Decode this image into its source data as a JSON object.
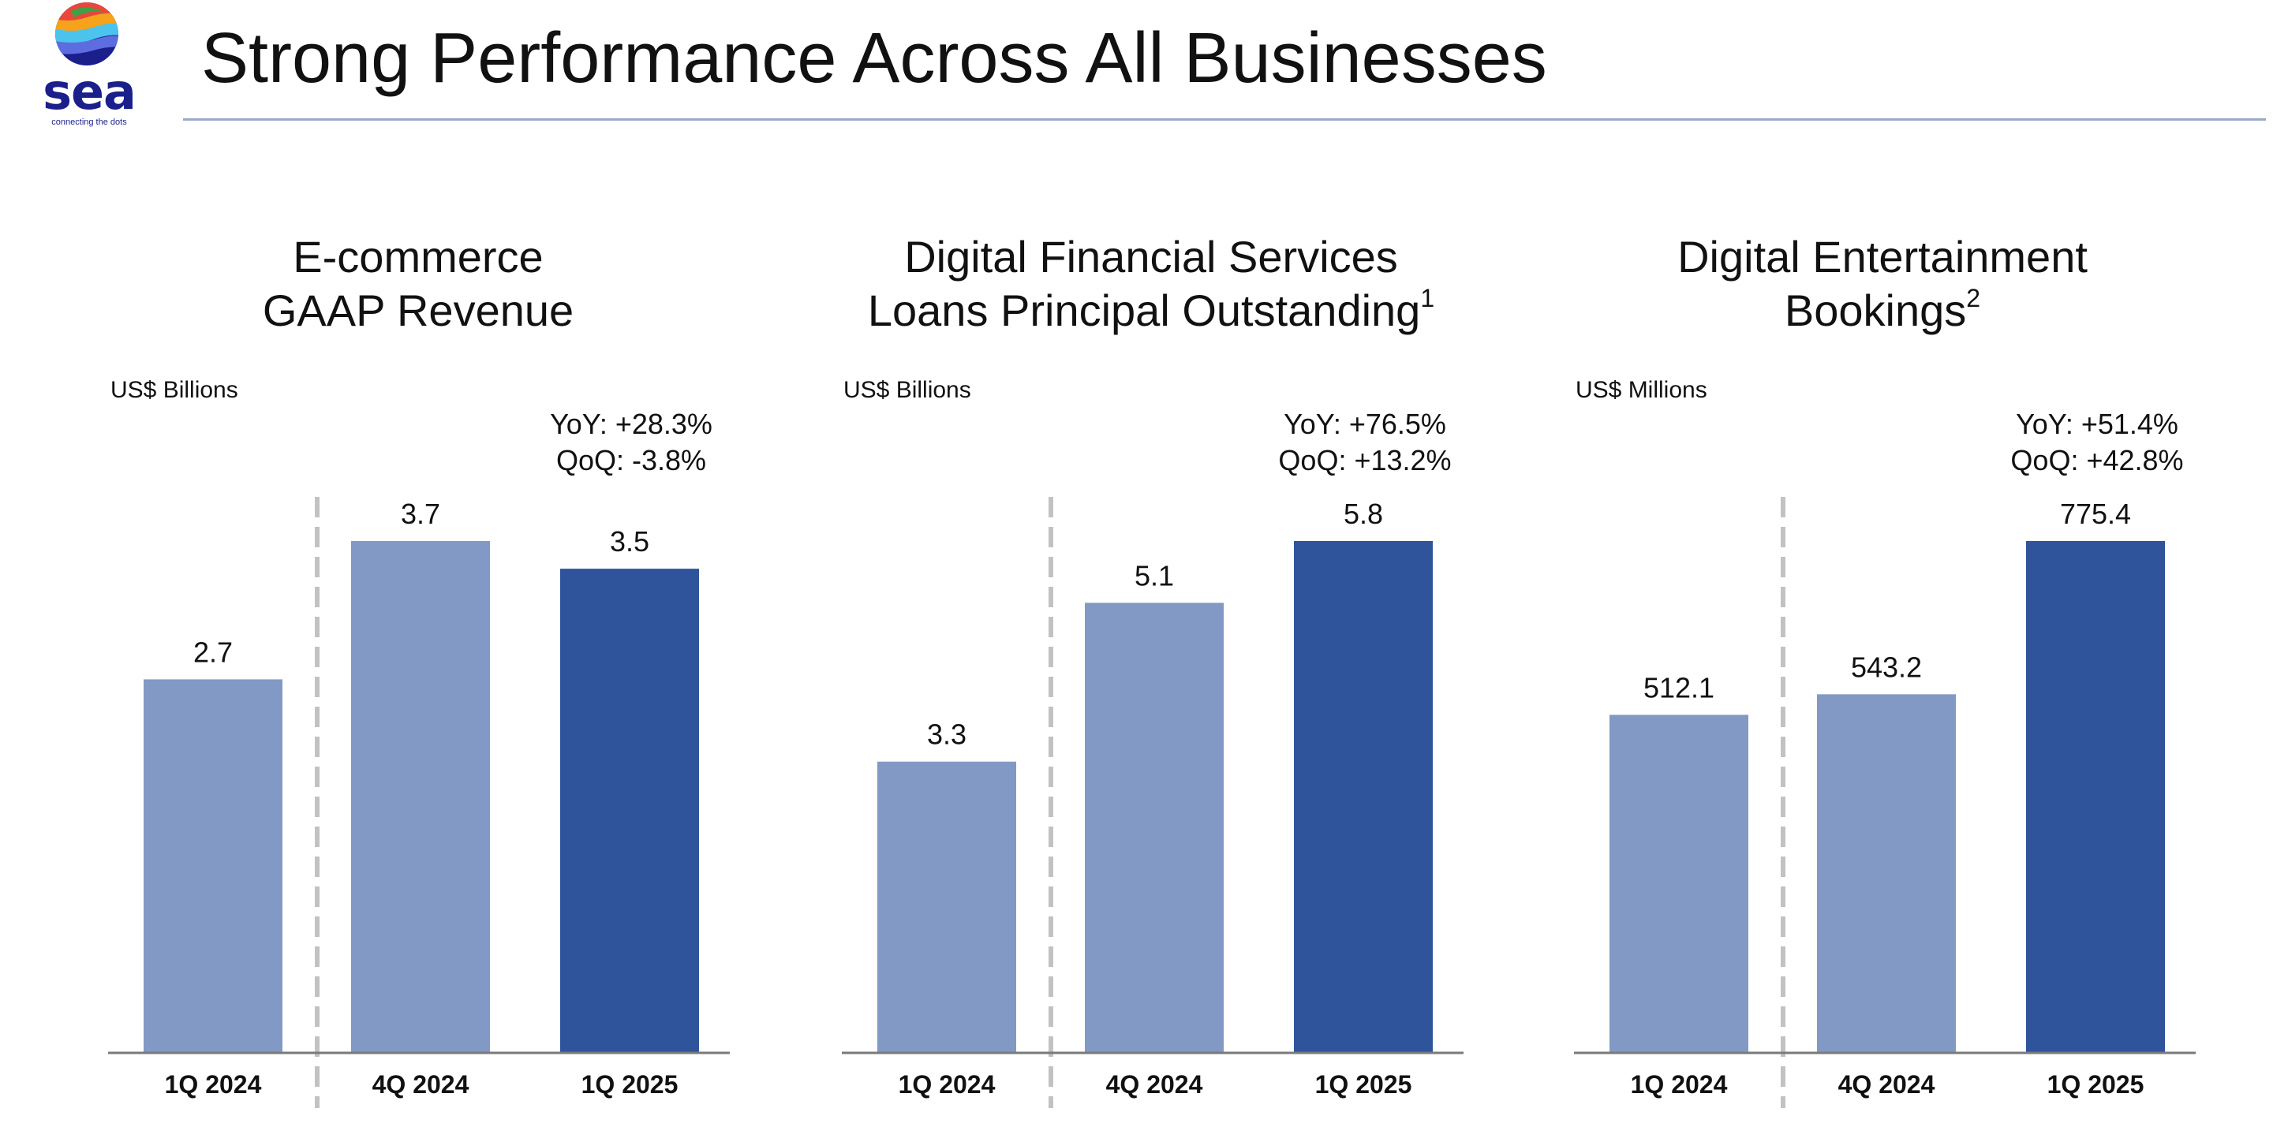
{
  "header": {
    "title": "Strong Performance Across All Businesses",
    "logo": {
      "word": "sea",
      "tagline": "connecting the dots"
    }
  },
  "colors": {
    "bar_prior": "#8199c4",
    "bar_current": "#2f549c",
    "divider": "#c2c2c2",
    "axis": "#7a7a7a",
    "rule": "#9aaac8"
  },
  "chart_data": [
    {
      "type": "bar",
      "title_line1": "E-commerce",
      "title_line2": "GAAP Revenue",
      "title_sup": "",
      "unit": "US$ Billions",
      "yoy": "YoY: +28.3%",
      "qoq": "QoQ: -3.8%",
      "categories": [
        "1Q 2024",
        "4Q 2024",
        "1Q 2025"
      ],
      "values": [
        2.7,
        3.7,
        3.5
      ],
      "value_labels": [
        "2.7",
        "3.7",
        "3.5"
      ],
      "ylim": [
        0,
        3.7
      ]
    },
    {
      "type": "bar",
      "title_line1": "Digital Financial Services",
      "title_line2": "Loans Principal Outstanding",
      "title_sup": "1",
      "unit": "US$ Billions",
      "yoy": "YoY: +76.5%",
      "qoq": "QoQ: +13.2%",
      "categories": [
        "1Q 2024",
        "4Q 2024",
        "1Q 2025"
      ],
      "values": [
        3.3,
        5.1,
        5.8
      ],
      "value_labels": [
        "3.3",
        "5.1",
        "5.8"
      ],
      "ylim": [
        0,
        5.8
      ]
    },
    {
      "type": "bar",
      "title_line1": "Digital Entertainment",
      "title_line2": "Bookings",
      "title_sup": "2",
      "unit": "US$ Millions",
      "yoy": "YoY: +51.4%",
      "qoq": "QoQ: +42.8%",
      "categories": [
        "1Q 2024",
        "4Q 2024",
        "1Q 2025"
      ],
      "values": [
        512.1,
        543.2,
        775.4
      ],
      "value_labels": [
        "512.1",
        "543.2",
        "775.4"
      ],
      "ylim": [
        0,
        775.4
      ]
    }
  ]
}
